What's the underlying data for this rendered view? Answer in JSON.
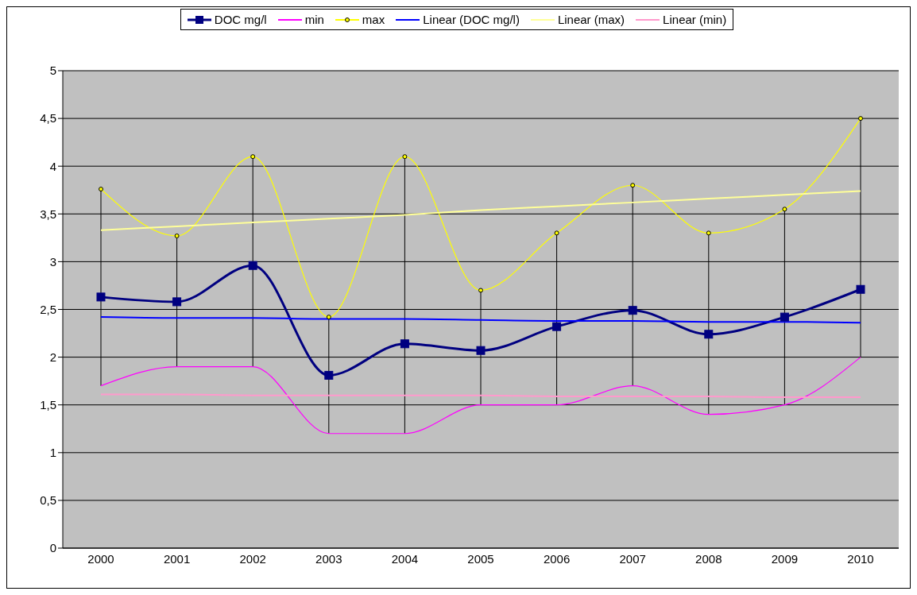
{
  "chart_data": {
    "type": "line",
    "categories": [
      "2000",
      "2001",
      "2002",
      "2003",
      "2004",
      "2005",
      "2006",
      "2007",
      "2008",
      "2009",
      "2010"
    ],
    "series": [
      {
        "name": "DOC mg/l",
        "color": "#000080",
        "marker": "square",
        "values": [
          2.63,
          2.58,
          2.96,
          1.81,
          2.14,
          2.07,
          2.32,
          2.49,
          2.24,
          2.42,
          2.71
        ]
      },
      {
        "name": "min",
        "color": "#ff00ff",
        "marker": "none",
        "values": [
          1.7,
          1.9,
          1.9,
          1.2,
          1.2,
          1.5,
          1.5,
          1.7,
          1.4,
          1.5,
          2.0
        ],
        "errors": [
          [
            1.7,
            3.76
          ],
          [
            1.9,
            3.27
          ],
          [
            1.9,
            4.1
          ],
          [
            1.2,
            2.42
          ],
          [
            1.2,
            4.1
          ],
          [
            1.5,
            2.7
          ],
          [
            1.5,
            3.3
          ],
          [
            1.7,
            3.8
          ],
          [
            1.4,
            3.3
          ],
          [
            1.5,
            3.55
          ],
          [
            2.0,
            4.5
          ]
        ]
      },
      {
        "name": "max",
        "color": "#ffff00",
        "marker": "circle",
        "values": [
          3.76,
          3.27,
          4.1,
          2.42,
          4.1,
          2.7,
          3.3,
          3.8,
          3.3,
          3.55,
          4.5
        ]
      },
      {
        "name": "Linear (DOC mg/l)",
        "color": "#0000ff",
        "marker": "none",
        "values": [
          2.42,
          2.41,
          2.41,
          2.4,
          2.4,
          2.39,
          2.38,
          2.38,
          2.37,
          2.37,
          2.36
        ]
      },
      {
        "name": "Linear (max)",
        "color": "#ffff99",
        "marker": "none",
        "values": [
          3.33,
          3.37,
          3.41,
          3.45,
          3.49,
          3.54,
          3.58,
          3.62,
          3.66,
          3.7,
          3.74
        ]
      },
      {
        "name": "Linear (min)",
        "color": "#ff99cc",
        "marker": "none",
        "values": [
          1.61,
          1.61,
          1.6,
          1.6,
          1.6,
          1.6,
          1.59,
          1.59,
          1.59,
          1.58,
          1.58
        ]
      }
    ],
    "ylim": [
      0,
      5
    ],
    "yticks": [
      0,
      {
        "value": 0.5,
        "label": "0,5"
      },
      1,
      {
        "value": 1.5,
        "label": "1,5"
      },
      2,
      {
        "value": 2.5,
        "label": "2,5"
      },
      3,
      {
        "value": 3.5,
        "label": "3,5"
      },
      4,
      {
        "value": 4.5,
        "label": "4,5"
      },
      5
    ],
    "grid": "y",
    "legend": "top",
    "line_style": "solid"
  }
}
